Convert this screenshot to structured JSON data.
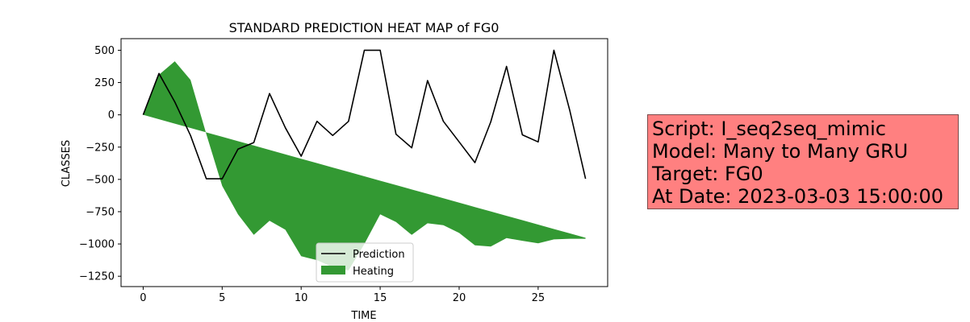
{
  "chart_data": {
    "type": "line",
    "title": "STANDARD PREDICTION HEAT MAP of FG0",
    "xlabel": "TIME",
    "ylabel": "CLASSES",
    "xlim": [
      -1.4,
      29.4
    ],
    "ylim": [
      -1330,
      590
    ],
    "x_ticks": [
      0,
      5,
      10,
      15,
      20,
      25
    ],
    "y_ticks": [
      500,
      250,
      0,
      -250,
      -500,
      -750,
      -1000,
      -1250
    ],
    "grid": false,
    "legend": "lower center",
    "series": [
      {
        "name": "Prediction",
        "type": "line",
        "color": "#000000",
        "x": [
          0,
          1,
          2,
          3,
          4,
          5,
          6,
          7,
          8,
          9,
          10,
          11,
          12,
          13,
          14,
          15,
          16,
          17,
          18,
          19,
          20,
          21,
          22,
          23,
          24,
          25,
          26,
          27,
          28
        ],
        "y": [
          0,
          320,
          100,
          -160,
          -495,
          -495,
          -265,
          -215,
          165,
          -100,
          -320,
          -50,
          -160,
          -50,
          500,
          500,
          -150,
          -255,
          265,
          -50,
          -210,
          -370,
          -55,
          375,
          -155,
          -210,
          500,
          35,
          -495
        ]
      },
      {
        "name": "Heating",
        "type": "area",
        "color": "#339933",
        "x": [
          0,
          1,
          2,
          3,
          4,
          5,
          6,
          7,
          8,
          9,
          10,
          11,
          12,
          13,
          14,
          15,
          16,
          17,
          18,
          19,
          20,
          21,
          22,
          23,
          24,
          25,
          26,
          27,
          28
        ],
        "y_upper": [
          0,
          310,
          415,
          270,
          -150,
          -550,
          -770,
          -930,
          -820,
          -890,
          -1095,
          -1125,
          -1180,
          -1205,
          -1000,
          -770,
          -830,
          -930,
          -840,
          -855,
          -915,
          -1010,
          -1020,
          -955,
          -975,
          -995,
          -965,
          -960,
          -960
        ],
        "y_lower": [
          0,
          -34,
          -68,
          -102,
          -136,
          -170,
          -204,
          -238,
          -272,
          -306,
          -340,
          -374,
          -408,
          -442,
          -476,
          -510,
          -544,
          -578,
          -612,
          -646,
          -680,
          -714,
          -748,
          -782,
          -816,
          -850,
          -884,
          -918,
          -952
        ]
      }
    ]
  },
  "info_box": {
    "background": "#ff8080",
    "lines": [
      "Script: I_seq2seq_mimic",
      "Model: Many to Many GRU",
      "Target: FG0",
      "At Date: 2023-03-03 15:00:00"
    ]
  }
}
